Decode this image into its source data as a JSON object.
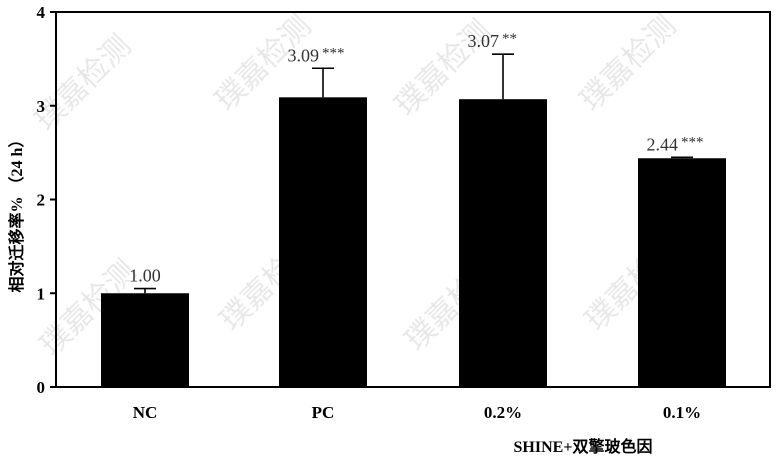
{
  "chart_data": {
    "type": "bar",
    "categories": [
      "NC",
      "PC",
      "0.2%",
      "0.1%"
    ],
    "values": [
      1.0,
      3.09,
      3.07,
      2.44
    ],
    "error_up": [
      0.05,
      0.31,
      0.48,
      0.01
    ],
    "data_labels": [
      "1.00",
      "3.09",
      "3.07",
      "2.44"
    ],
    "significance": [
      "",
      "***",
      "**",
      "***"
    ],
    "ylabel": "相对迁移率% （24 h）",
    "xlabel": "SHINE+双擎玻色因",
    "ylim": [
      0,
      4
    ],
    "yticks": [
      0,
      1,
      2,
      3,
      4
    ],
    "bar_color": "#000000",
    "grid": false,
    "legend": "none"
  },
  "watermark": "璞嘉检测"
}
